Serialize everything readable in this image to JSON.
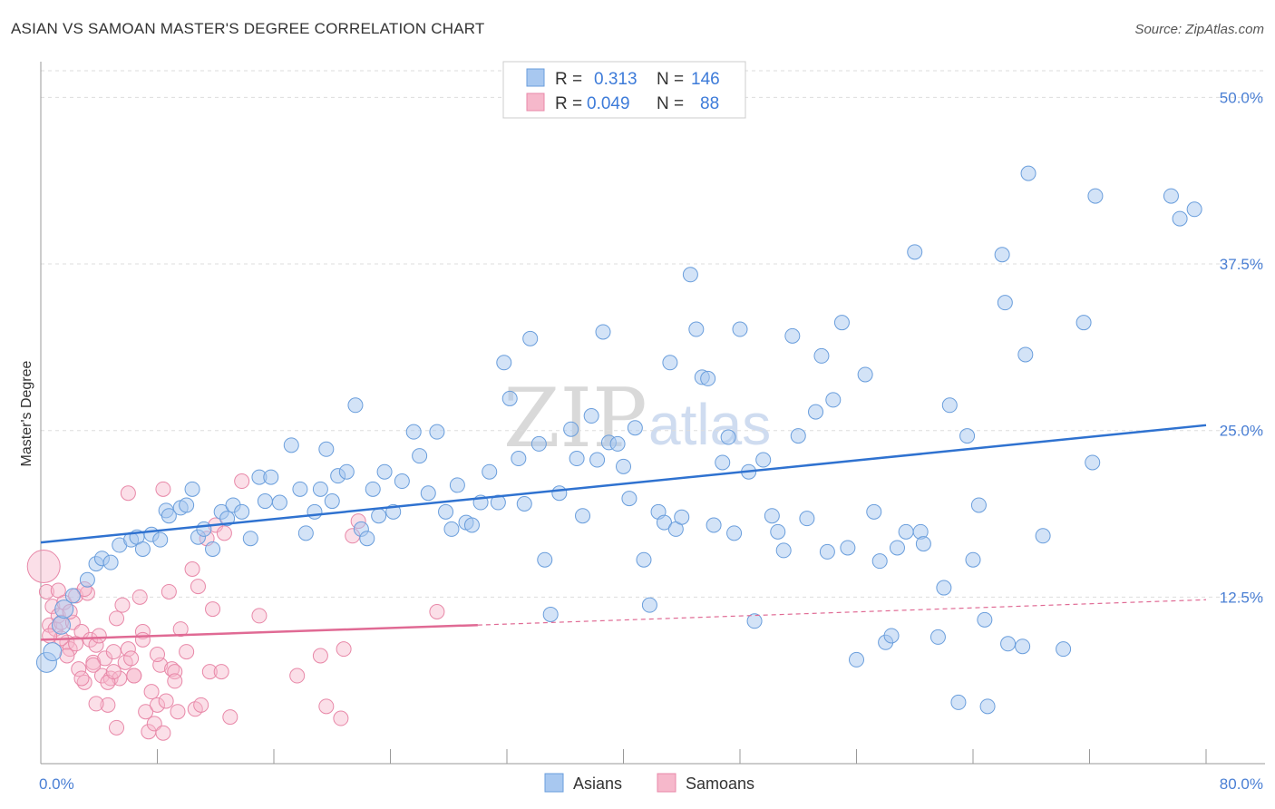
{
  "title": "ASIAN VS SAMOAN MASTER'S DEGREE CORRELATION CHART",
  "source": "Source: ZipAtlas.com",
  "watermark": {
    "zip": "ZIP",
    "atlas": "atlas"
  },
  "colors": {
    "asian_fill": "#a8c8f0",
    "asian_stroke": "#6a9edc",
    "asian_line": "#2f72d0",
    "samoan_fill": "#f6b8cb",
    "samoan_stroke": "#e888a8",
    "samoan_line": "#e06a94",
    "tick_text": "#4a7fd4",
    "grid": "#dddddd"
  },
  "legend": {
    "rows": [
      {
        "r_label": "R =",
        "r_value": "0.313",
        "n_label": "N =",
        "n_value": "146"
      },
      {
        "r_label": "R =",
        "r_value": "0.049",
        "n_label": "N =",
        "n_value": "88"
      }
    ]
  },
  "bottom_legend": {
    "asians": "Asians",
    "samoans": "Samoans"
  },
  "chart_data": {
    "type": "scatter",
    "title": "ASIAN VS SAMOAN MASTER'S DEGREE CORRELATION CHART",
    "xlabel": "",
    "ylabel": "Master's Degree",
    "xlim": [
      0,
      80
    ],
    "ylim": [
      0,
      52
    ],
    "x_tick_labels": [
      "0.0%",
      "80.0%"
    ],
    "y_ticks": [
      12.5,
      25.0,
      37.5,
      50.0
    ],
    "y_tick_labels": [
      "12.5%",
      "25.0%",
      "37.5%",
      "50.0%"
    ],
    "grid": "horizontal dashed",
    "legend_position": "top-center",
    "series": [
      {
        "name": "Asians",
        "r": 0.313,
        "n": 146,
        "trend": {
          "x": [
            0,
            80
          ],
          "y": [
            16.6,
            25.4
          ]
        },
        "points": [
          [
            0.4,
            7.6
          ],
          [
            0.8,
            8.4
          ],
          [
            1.4,
            10.4
          ],
          [
            1.6,
            11.6
          ],
          [
            2.2,
            12.6
          ],
          [
            3.2,
            13.8
          ],
          [
            3.8,
            15.0
          ],
          [
            4.2,
            15.4
          ],
          [
            4.8,
            15.1
          ],
          [
            5.4,
            16.4
          ],
          [
            6.2,
            16.8
          ],
          [
            6.6,
            17.0
          ],
          [
            7.0,
            16.1
          ],
          [
            7.6,
            17.2
          ],
          [
            8.2,
            16.8
          ],
          [
            8.6,
            19.0
          ],
          [
            8.8,
            18.6
          ],
          [
            9.6,
            19.2
          ],
          [
            10.0,
            19.4
          ],
          [
            10.4,
            20.6
          ],
          [
            10.8,
            17.0
          ],
          [
            11.2,
            17.6
          ],
          [
            11.8,
            16.1
          ],
          [
            12.4,
            18.9
          ],
          [
            12.8,
            18.4
          ],
          [
            13.2,
            19.4
          ],
          [
            13.8,
            18.9
          ],
          [
            14.4,
            16.9
          ],
          [
            15.0,
            21.5
          ],
          [
            15.4,
            19.7
          ],
          [
            15.8,
            21.5
          ],
          [
            16.4,
            19.6
          ],
          [
            17.2,
            23.9
          ],
          [
            17.8,
            20.6
          ],
          [
            18.2,
            17.3
          ],
          [
            18.8,
            18.9
          ],
          [
            19.2,
            20.6
          ],
          [
            19.6,
            23.6
          ],
          [
            20.0,
            19.7
          ],
          [
            20.4,
            21.6
          ],
          [
            21.0,
            21.9
          ],
          [
            21.6,
            26.9
          ],
          [
            22.0,
            17.6
          ],
          [
            22.4,
            16.9
          ],
          [
            22.8,
            20.6
          ],
          [
            23.2,
            18.6
          ],
          [
            23.6,
            21.9
          ],
          [
            24.2,
            18.9
          ],
          [
            24.8,
            21.2
          ],
          [
            25.6,
            24.9
          ],
          [
            26.0,
            23.1
          ],
          [
            26.6,
            20.3
          ],
          [
            27.2,
            24.9
          ],
          [
            27.8,
            18.9
          ],
          [
            28.2,
            17.6
          ],
          [
            28.6,
            20.9
          ],
          [
            29.2,
            18.1
          ],
          [
            29.6,
            17.9
          ],
          [
            30.2,
            19.6
          ],
          [
            30.8,
            21.9
          ],
          [
            31.4,
            19.6
          ],
          [
            31.8,
            30.1
          ],
          [
            32.2,
            27.4
          ],
          [
            32.8,
            22.9
          ],
          [
            33.2,
            19.5
          ],
          [
            33.6,
            31.9
          ],
          [
            34.2,
            24.0
          ],
          [
            34.6,
            15.3
          ],
          [
            35.0,
            11.2
          ],
          [
            35.6,
            20.3
          ],
          [
            36.4,
            25.1
          ],
          [
            36.8,
            22.9
          ],
          [
            37.2,
            18.6
          ],
          [
            37.8,
            26.1
          ],
          [
            38.2,
            22.8
          ],
          [
            38.6,
            32.4
          ],
          [
            39.0,
            24.1
          ],
          [
            39.6,
            24.0
          ],
          [
            40.0,
            22.3
          ],
          [
            40.4,
            19.9
          ],
          [
            40.8,
            25.2
          ],
          [
            41.4,
            15.3
          ],
          [
            41.8,
            11.9
          ],
          [
            42.4,
            18.9
          ],
          [
            42.8,
            18.1
          ],
          [
            43.2,
            30.1
          ],
          [
            43.6,
            17.6
          ],
          [
            44.0,
            18.5
          ],
          [
            44.6,
            36.7
          ],
          [
            45.0,
            32.6
          ],
          [
            45.4,
            29.0
          ],
          [
            45.8,
            28.9
          ],
          [
            46.2,
            17.9
          ],
          [
            46.8,
            22.6
          ],
          [
            47.2,
            24.5
          ],
          [
            47.6,
            17.3
          ],
          [
            48.0,
            32.6
          ],
          [
            48.6,
            21.9
          ],
          [
            49.0,
            10.7
          ],
          [
            49.6,
            22.8
          ],
          [
            50.2,
            18.6
          ],
          [
            50.6,
            17.4
          ],
          [
            51.0,
            16.0
          ],
          [
            51.6,
            32.1
          ],
          [
            52.0,
            24.6
          ],
          [
            52.6,
            18.4
          ],
          [
            53.2,
            26.4
          ],
          [
            53.6,
            30.6
          ],
          [
            54.0,
            15.9
          ],
          [
            54.4,
            27.3
          ],
          [
            55.0,
            33.1
          ],
          [
            55.4,
            16.2
          ],
          [
            56.0,
            7.8
          ],
          [
            56.6,
            29.2
          ],
          [
            57.2,
            18.9
          ],
          [
            57.6,
            15.2
          ],
          [
            58.0,
            9.1
          ],
          [
            58.4,
            9.6
          ],
          [
            58.8,
            16.2
          ],
          [
            59.4,
            17.4
          ],
          [
            60.0,
            38.4
          ],
          [
            60.4,
            17.4
          ],
          [
            61.6,
            9.5
          ],
          [
            62.0,
            13.2
          ],
          [
            62.4,
            26.9
          ],
          [
            63.0,
            4.6
          ],
          [
            63.6,
            24.6
          ],
          [
            64.0,
            15.3
          ],
          [
            64.4,
            19.4
          ],
          [
            64.8,
            10.8
          ],
          [
            65.0,
            4.3
          ],
          [
            66.0,
            38.2
          ],
          [
            66.2,
            34.6
          ],
          [
            67.4,
            8.8
          ],
          [
            67.6,
            30.7
          ],
          [
            67.8,
            44.3
          ],
          [
            68.8,
            17.1
          ],
          [
            70.2,
            8.6
          ],
          [
            71.6,
            33.1
          ],
          [
            72.2,
            22.6
          ],
          [
            72.4,
            42.6
          ],
          [
            77.6,
            42.6
          ],
          [
            78.2,
            40.9
          ],
          [
            79.2,
            41.6
          ],
          [
            66.4,
            9.0
          ],
          [
            60.6,
            16.5
          ]
        ]
      },
      {
        "name": "Samoans",
        "r": 0.049,
        "n": 88,
        "trend": {
          "x": [
            0,
            30
          ],
          "y": [
            9.3,
            10.4
          ]
        },
        "trend_dashed": {
          "x": [
            30,
            80
          ],
          "y": [
            10.4,
            12.3
          ]
        },
        "points": [
          [
            0.2,
            14.8
          ],
          [
            0.4,
            12.9
          ],
          [
            0.6,
            10.4
          ],
          [
            0.8,
            11.8
          ],
          [
            1.0,
            10.1
          ],
          [
            1.2,
            11.1
          ],
          [
            1.4,
            10.6
          ],
          [
            1.6,
            12.1
          ],
          [
            1.8,
            9.1
          ],
          [
            2.0,
            8.6
          ],
          [
            2.2,
            10.6
          ],
          [
            2.4,
            12.6
          ],
          [
            2.6,
            7.1
          ],
          [
            2.8,
            9.9
          ],
          [
            3.0,
            6.1
          ],
          [
            3.2,
            12.8
          ],
          [
            3.4,
            9.3
          ],
          [
            3.6,
            7.6
          ],
          [
            3.8,
            8.9
          ],
          [
            4.0,
            9.6
          ],
          [
            4.2,
            6.6
          ],
          [
            4.4,
            7.9
          ],
          [
            4.6,
            4.4
          ],
          [
            4.8,
            6.4
          ],
          [
            5.0,
            8.4
          ],
          [
            5.2,
            2.7
          ],
          [
            5.4,
            6.4
          ],
          [
            5.6,
            11.9
          ],
          [
            5.8,
            7.6
          ],
          [
            6.0,
            8.6
          ],
          [
            6.2,
            7.9
          ],
          [
            6.4,
            6.6
          ],
          [
            6.8,
            12.5
          ],
          [
            7.0,
            9.9
          ],
          [
            7.2,
            3.9
          ],
          [
            7.4,
            2.4
          ],
          [
            7.6,
            5.4
          ],
          [
            7.8,
            3.0
          ],
          [
            8.0,
            4.4
          ],
          [
            8.2,
            7.4
          ],
          [
            8.4,
            2.3
          ],
          [
            8.6,
            4.7
          ],
          [
            8.8,
            12.9
          ],
          [
            9.0,
            7.1
          ],
          [
            9.2,
            6.9
          ],
          [
            9.6,
            10.1
          ],
          [
            10.0,
            8.4
          ],
          [
            10.4,
            14.6
          ],
          [
            10.6,
            4.1
          ],
          [
            10.8,
            13.3
          ],
          [
            11.0,
            4.4
          ],
          [
            11.4,
            16.9
          ],
          [
            11.6,
            6.9
          ],
          [
            12.0,
            17.9
          ],
          [
            12.4,
            6.9
          ],
          [
            13.0,
            3.5
          ],
          [
            13.8,
            21.2
          ],
          [
            15.0,
            11.1
          ],
          [
            17.6,
            6.6
          ],
          [
            19.2,
            8.1
          ],
          [
            19.6,
            4.3
          ],
          [
            20.6,
            3.4
          ],
          [
            21.4,
            17.1
          ],
          [
            21.8,
            18.2
          ],
          [
            27.2,
            11.4
          ],
          [
            20.8,
            8.6
          ],
          [
            3.0,
            13.1
          ],
          [
            2.0,
            11.4
          ],
          [
            1.4,
            9.4
          ],
          [
            6.4,
            6.6
          ],
          [
            8.0,
            8.2
          ],
          [
            4.6,
            6.1
          ],
          [
            3.8,
            4.5
          ],
          [
            9.4,
            3.9
          ],
          [
            12.6,
            17.3
          ],
          [
            1.2,
            13.0
          ],
          [
            2.4,
            9.0
          ],
          [
            5.2,
            10.9
          ],
          [
            7.0,
            9.3
          ],
          [
            6.0,
            20.3
          ],
          [
            8.4,
            20.6
          ],
          [
            9.2,
            6.2
          ],
          [
            11.8,
            11.6
          ],
          [
            2.8,
            6.4
          ],
          [
            3.6,
            7.4
          ],
          [
            5.0,
            6.9
          ],
          [
            1.8,
            8.1
          ],
          [
            0.6,
            9.6
          ]
        ]
      }
    ]
  }
}
